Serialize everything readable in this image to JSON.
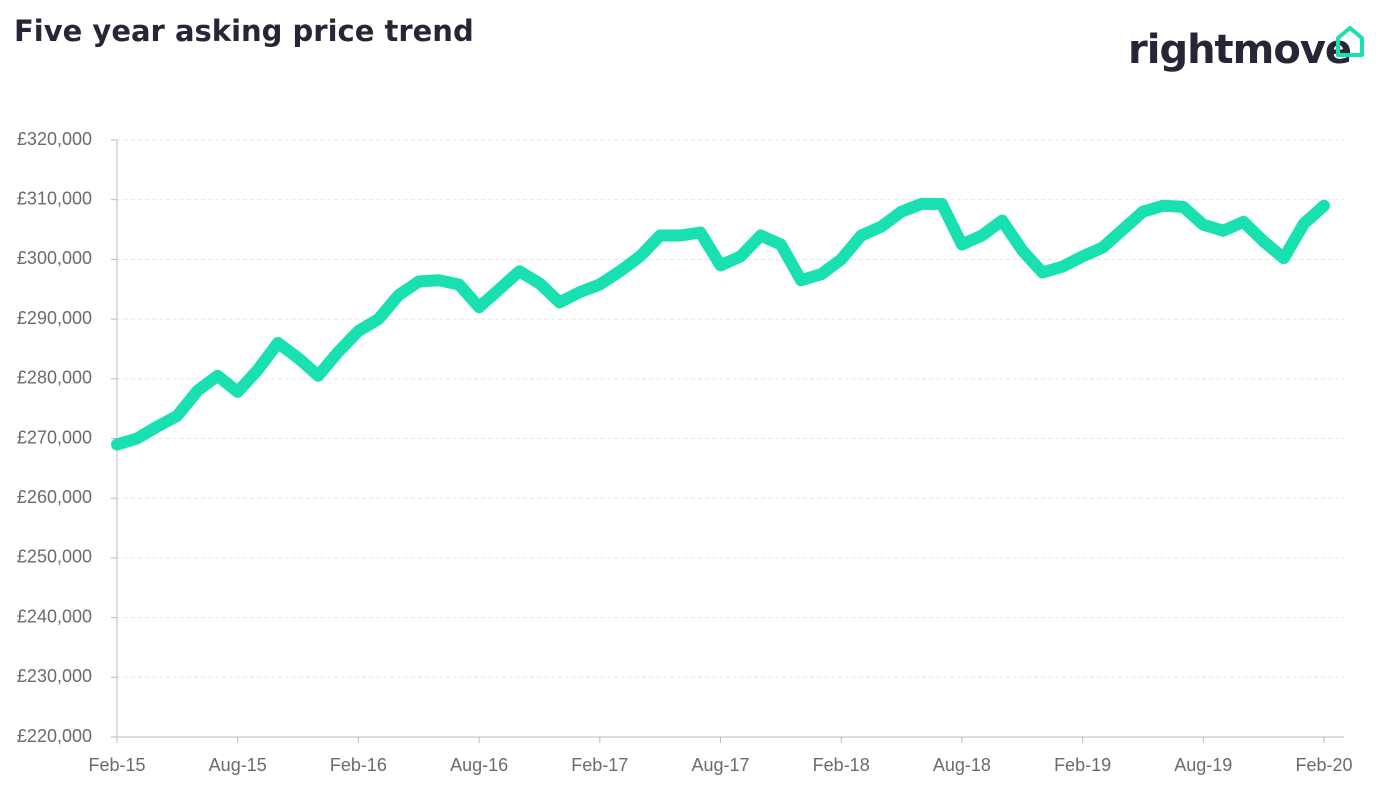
{
  "chart_data": {
    "type": "line",
    "title": "Five year asking price trend",
    "logo": "rightmove",
    "categories": [
      "Feb-15",
      null,
      null,
      null,
      null,
      null,
      "Aug-15",
      null,
      null,
      null,
      null,
      null,
      "Feb-16",
      null,
      null,
      null,
      null,
      null,
      "Aug-16",
      null,
      null,
      null,
      null,
      null,
      "Feb-17",
      null,
      null,
      null,
      null,
      null,
      "Aug-17",
      null,
      null,
      null,
      null,
      null,
      "Feb-18",
      null,
      null,
      null,
      null,
      null,
      "Aug-18",
      null,
      null,
      null,
      null,
      null,
      "Feb-19",
      null,
      null,
      null,
      null,
      null,
      "Aug-19",
      null,
      null,
      null,
      null,
      null,
      "Feb-20"
    ],
    "series": [
      {
        "name": "Asking price",
        "color": "#19e0b0",
        "values": [
          269000,
          270000,
          272000,
          273800,
          278000,
          280500,
          277800,
          281500,
          286000,
          283500,
          280500,
          284500,
          288000,
          290000,
          294000,
          296300,
          296500,
          295800,
          292000,
          295000,
          298000,
          296000,
          292800,
          294500,
          295800,
          298000,
          300500,
          304000,
          304000,
          304500,
          299000,
          300500,
          304000,
          302500,
          296500,
          297500,
          300000,
          304000,
          305500,
          308000,
          309300,
          309300,
          302500,
          304000,
          306500,
          301500,
          297800,
          298800,
          300500,
          302000,
          305000,
          308000,
          309000,
          308800,
          305800,
          304800,
          306300,
          303000,
          300200,
          306000,
          309000
        ]
      }
    ],
    "ylim": [
      220000,
      320000
    ],
    "yticks": [
      {
        "value": 220000,
        "label": "£220,000"
      },
      {
        "value": 230000,
        "label": "£230,000"
      },
      {
        "value": 240000,
        "label": "£240,000"
      },
      {
        "value": 250000,
        "label": "£250,000"
      },
      {
        "value": 260000,
        "label": "£260,000"
      },
      {
        "value": 270000,
        "label": "£270,000"
      },
      {
        "value": 280000,
        "label": "£280,000"
      },
      {
        "value": 290000,
        "label": "£290,000"
      },
      {
        "value": 300000,
        "label": "£300,000"
      },
      {
        "value": 310000,
        "label": "£310,000"
      },
      {
        "value": 320000,
        "label": "£320,000"
      }
    ],
    "grid": true
  }
}
